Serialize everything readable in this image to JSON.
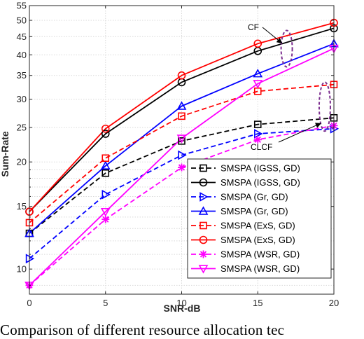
{
  "caption": "Comparison of different resource allocation tec",
  "chart_data": {
    "type": "line",
    "xlabel": "SNR-dB",
    "ylabel": "Sum-Rate",
    "x": [
      0,
      5,
      10,
      15,
      20
    ],
    "xlim": [
      0,
      20
    ],
    "ylim": [
      8.5,
      55
    ],
    "yscale": "log",
    "xticks": [
      "0",
      "5",
      "10",
      "15",
      "20"
    ],
    "yticks": [
      10,
      15,
      20,
      25,
      30,
      35,
      40,
      45,
      50,
      55
    ],
    "grid": true,
    "legend_position": "bottom-right",
    "annotations": [
      {
        "text": "CF"
      },
      {
        "text": "CLCF"
      }
    ],
    "series": [
      {
        "name": "SMSPA (IGSS, GD)",
        "color": "#000000",
        "dash": "dashed",
        "marker": "square",
        "values": [
          12.6,
          18.6,
          22.9,
          25.5,
          26.6
        ]
      },
      {
        "name": "SMSPA (IGSS, GD)",
        "color": "#000000",
        "dash": "solid",
        "marker": "circle",
        "values": [
          14.5,
          24.0,
          33.5,
          41.0,
          47.5
        ]
      },
      {
        "name": "SMSPA (Gr, GD)",
        "color": "#0000ff",
        "dash": "dashed",
        "marker": "triangle-right",
        "values": [
          10.7,
          16.2,
          20.9,
          24.0,
          24.8
        ]
      },
      {
        "name": "SMSPA (Gr, GD)",
        "color": "#0000ff",
        "dash": "solid",
        "marker": "triangle-up",
        "values": [
          12.6,
          19.5,
          28.7,
          35.4,
          43.0
        ]
      },
      {
        "name": "SMSPA (ExS, GD)",
        "color": "#ff0000",
        "dash": "dashed",
        "marker": "square",
        "values": [
          13.5,
          20.5,
          26.9,
          31.6,
          33.0
        ]
      },
      {
        "name": "SMSPA (ExS, GD)",
        "color": "#ff0000",
        "dash": "solid",
        "marker": "circle",
        "values": [
          14.5,
          24.8,
          35.0,
          43.0,
          49.2
        ]
      },
      {
        "name": "SMSPA (WSR, GD)",
        "color": "#ff00ff",
        "dash": "dashed",
        "marker": "asterisk",
        "values": [
          9.0,
          13.8,
          19.3,
          23.1,
          25.3
        ]
      },
      {
        "name": "SMSPA (WSR, GD)",
        "color": "#ff00ff",
        "dash": "solid",
        "marker": "triangle-down",
        "values": [
          9.0,
          14.5,
          23.3,
          33.2,
          41.7
        ]
      }
    ]
  }
}
